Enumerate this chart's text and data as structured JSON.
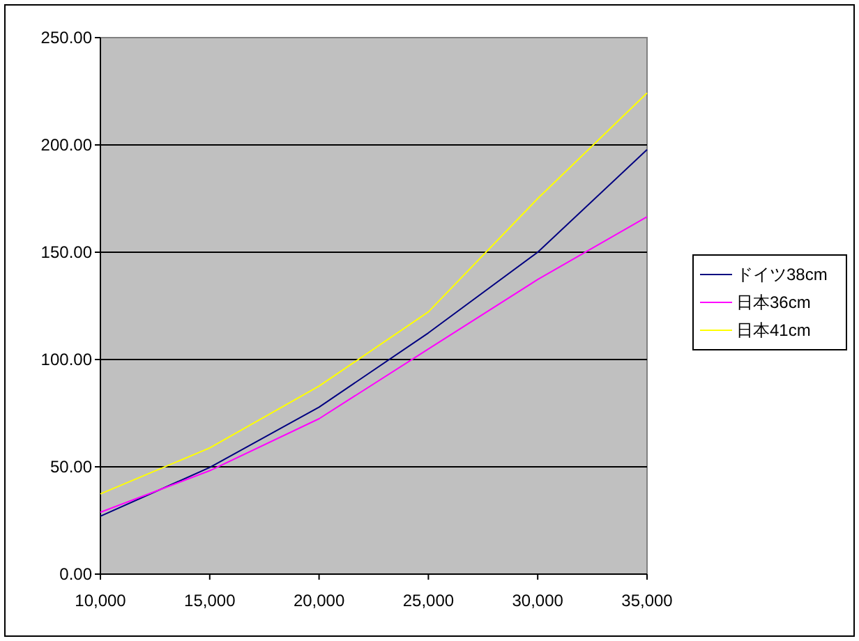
{
  "chart_data": {
    "type": "line",
    "x": [
      10000,
      15000,
      20000,
      25000,
      30000,
      35000
    ],
    "series": [
      {
        "name": "ドイツ38cm",
        "color": "#000080",
        "values": [
          27.0,
          49.7,
          77.8,
          112.4,
          150.0,
          197.8
        ]
      },
      {
        "name": "日本36cm",
        "color": "#ff00ff",
        "values": [
          28.8,
          48.2,
          72.4,
          104.9,
          137.3,
          166.5
        ]
      },
      {
        "name": "日本41cm",
        "color": "#ffff00",
        "values": [
          37.4,
          58.8,
          87.6,
          122.2,
          175.0,
          224.2
        ]
      }
    ],
    "xlim": [
      10000,
      35000
    ],
    "xticks": [
      {
        "value": 10000,
        "label": "10,000"
      },
      {
        "value": 15000,
        "label": "15,000"
      },
      {
        "value": 20000,
        "label": "20,000"
      },
      {
        "value": 25000,
        "label": "25,000"
      },
      {
        "value": 30000,
        "label": "30,000"
      },
      {
        "value": 35000,
        "label": "35,000"
      }
    ],
    "ylim": [
      0,
      250
    ],
    "yticks": [
      {
        "value": 0,
        "label": "0.00"
      },
      {
        "value": 50,
        "label": "50.00"
      },
      {
        "value": 100,
        "label": "100.00"
      },
      {
        "value": 150,
        "label": "150.00"
      },
      {
        "value": 200,
        "label": "200.00"
      },
      {
        "value": 250,
        "label": "250.00"
      }
    ],
    "grid": "y",
    "legend": "right",
    "marker": "none",
    "line_style": "solid"
  }
}
